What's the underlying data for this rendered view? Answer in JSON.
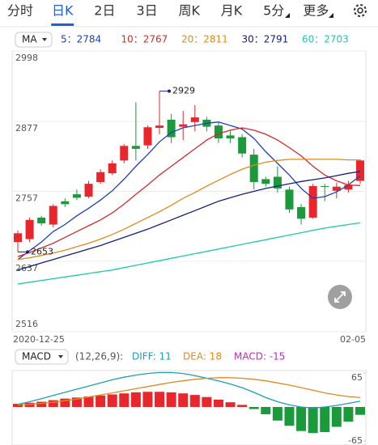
{
  "tabs": [
    "分时",
    "日K",
    "2日",
    "3日",
    "周K",
    "月K",
    "5分",
    "更多"
  ],
  "selected_tab": 1,
  "ma_legend": {
    "button": "MA",
    "items": [
      {
        "label": "5：2784",
        "color": "#1f3fbf"
      },
      {
        "label": "10：2767",
        "color": "#d42a2a"
      },
      {
        "label": "20：2811",
        "color": "#e08a1e"
      },
      {
        "label": "30：2791",
        "color": "#14207a"
      },
      {
        "label": "60：2703",
        "color": "#1ec9a8"
      }
    ]
  },
  "chart_data": [
    {
      "type": "candlestick",
      "x": [
        "2020-12-25",
        null,
        null,
        null,
        null,
        null,
        null,
        null,
        null,
        null,
        null,
        null,
        null,
        null,
        null,
        null,
        null,
        null,
        null,
        null,
        null,
        null,
        null,
        null,
        null,
        null,
        null,
        null,
        null,
        "02-05"
      ],
      "open": [
        2670,
        2675,
        2712,
        2700,
        2740,
        2752,
        2748,
        2773,
        2788,
        2810,
        2835,
        2836,
        2866,
        2880,
        2868,
        2876,
        2880,
        2870,
        2853,
        2850,
        2820,
        2778,
        2782,
        2760,
        2730,
        2712,
        2766,
        2758,
        2760,
        2775
      ],
      "high": [
        2690,
        2712,
        2715,
        2735,
        2745,
        2760,
        2775,
        2795,
        2810,
        2838,
        2910,
        2870,
        2929,
        2890,
        2895,
        2905,
        2885,
        2875,
        2862,
        2855,
        2830,
        2782,
        2800,
        2765,
        2735,
        2770,
        2770,
        2772,
        2775,
        2812
      ],
      "low": [
        2653,
        2670,
        2698,
        2695,
        2730,
        2742,
        2745,
        2770,
        2785,
        2805,
        2810,
        2830,
        2855,
        2840,
        2845,
        2860,
        2860,
        2840,
        2840,
        2815,
        2760,
        2765,
        2755,
        2720,
        2700,
        2710,
        2740,
        2745,
        2755,
        2770
      ],
      "close": [
        2685,
        2708,
        2702,
        2732,
        2735,
        2746,
        2770,
        2790,
        2805,
        2835,
        2830,
        2867,
        2870,
        2850,
        2872,
        2884,
        2868,
        2848,
        2848,
        2822,
        2773,
        2770,
        2762,
        2726,
        2710,
        2766,
        2765,
        2765,
        2768,
        2810
      ],
      "up_color": "#e8262b",
      "down_color": "#1a9a3a",
      "series": [
        {
          "color": "#1f3fbf",
          "values": [
            2640,
            2655,
            2670,
            2688,
            2700,
            2715,
            2728,
            2742,
            2758,
            2778,
            2800,
            2820,
            2842,
            2858,
            2866,
            2870,
            2874,
            2876,
            2870,
            2864,
            2848,
            2825,
            2805,
            2785,
            2762,
            2745,
            2748,
            2756,
            2768,
            2784
          ]
        },
        {
          "color": "#d42a2a",
          "values": [
            2645,
            2652,
            2660,
            2668,
            2678,
            2688,
            2698,
            2708,
            2720,
            2735,
            2752,
            2768,
            2785,
            2800,
            2815,
            2830,
            2845,
            2856,
            2862,
            2866,
            2862,
            2855,
            2845,
            2832,
            2818,
            2800,
            2785,
            2775,
            2768,
            2767
          ]
        },
        {
          "color": "#e08a1e",
          "values": [
            2640,
            2643,
            2647,
            2651,
            2656,
            2662,
            2668,
            2675,
            2683,
            2692,
            2702,
            2712,
            2722,
            2733,
            2745,
            2755,
            2766,
            2776,
            2786,
            2795,
            2802,
            2807,
            2810,
            2812,
            2812,
            2812,
            2812,
            2812,
            2811,
            2811
          ]
        },
        {
          "color": "#14207a",
          "values": [
            2622,
            2628,
            2634,
            2640,
            2646,
            2652,
            2658,
            2664,
            2671,
            2678,
            2685,
            2692,
            2700,
            2708,
            2716,
            2724,
            2732,
            2740,
            2746,
            2752,
            2757,
            2762,
            2766,
            2770,
            2774,
            2777,
            2780,
            2784,
            2788,
            2791
          ]
        },
        {
          "color": "#1ec9a8",
          "values": [
            2598,
            2601,
            2604,
            2607,
            2610,
            2613,
            2616,
            2619,
            2622,
            2626,
            2630,
            2634,
            2638,
            2642,
            2646,
            2650,
            2654,
            2658,
            2662,
            2666,
            2670,
            2674,
            2678,
            2682,
            2686,
            2690,
            2694,
            2697,
            2700,
            2703
          ]
        }
      ],
      "annotations": [
        {
          "label": "2929",
          "index": 12,
          "value": 2929
        },
        {
          "label": "2653",
          "index": 0,
          "value": 2653
        }
      ],
      "ylim": [
        2516,
        2998
      ],
      "yticks": [
        2998,
        2877,
        2757,
        2637,
        2516
      ],
      "grid": true
    },
    {
      "type": "macd",
      "legend": {
        "button": "MACD",
        "items": [
          {
            "label": "(12,26,9):",
            "color": "#555555"
          },
          {
            "label": "DIFF: 11",
            "color": "#1e9fb0"
          },
          {
            "label": "DEA: 18",
            "color": "#e08a1e"
          },
          {
            "label": "MACD: -15",
            "color": "#c02ac0"
          }
        ]
      },
      "values": [
        6,
        8,
        10,
        13,
        16,
        18,
        20,
        22,
        24,
        26,
        28,
        29,
        29,
        28,
        26,
        23,
        19,
        14,
        9,
        4,
        -4,
        -14,
        -26,
        -36,
        -46,
        -50,
        -48,
        -38,
        -28,
        -15
      ],
      "up_color": "#e8262b",
      "down_color": "#1a9a3a",
      "series": [
        {
          "color": "#1e9fb0",
          "values": [
            5,
            10,
            16,
            22,
            28,
            34,
            40,
            46,
            52,
            57,
            61,
            64,
            66,
            66,
            64,
            60,
            55,
            50,
            44,
            37,
            28,
            18,
            10,
            4,
            0,
            -2,
            0,
            3,
            7,
            11
          ]
        },
        {
          "color": "#e08a1e",
          "values": [
            4,
            5,
            7,
            9,
            12,
            15,
            19,
            23,
            27,
            31,
            35,
            39,
            43,
            47,
            50,
            53,
            55,
            56,
            56,
            55,
            53,
            50,
            46,
            42,
            37,
            32,
            27,
            23,
            20,
            18
          ]
        }
      ],
      "ylim": [
        -65,
        65
      ],
      "yticks": [
        65,
        -65
      ]
    }
  ]
}
